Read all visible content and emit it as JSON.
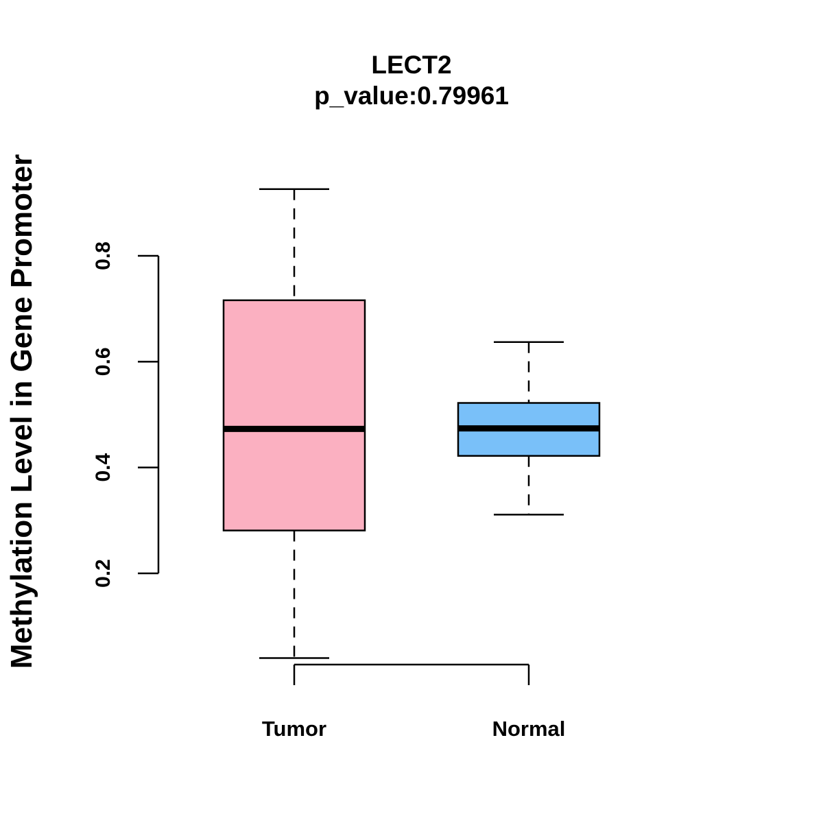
{
  "chart_data": {
    "type": "box",
    "title": "LECT2",
    "subtitle": "p_value:0.79961",
    "xlabel": "",
    "ylabel": "Methylation Level in Gene Promoter",
    "yticks": [
      0.2,
      0.4,
      0.6,
      0.8
    ],
    "ytick_labels": [
      "0.2",
      "0.4",
      "0.6",
      "0.8"
    ],
    "categories": [
      "Tumor",
      "Normal"
    ],
    "boxes": [
      {
        "category": "Tumor",
        "whisker_low": 0.04,
        "q1": 0.281,
        "median": 0.473,
        "q3": 0.716,
        "whisker_high": 0.926,
        "color": "#FBB0C1"
      },
      {
        "category": "Normal",
        "whisker_low": 0.311,
        "q1": 0.422,
        "median": 0.474,
        "q3": 0.522,
        "whisker_high": 0.637,
        "color": "#79C0F9"
      }
    ]
  }
}
